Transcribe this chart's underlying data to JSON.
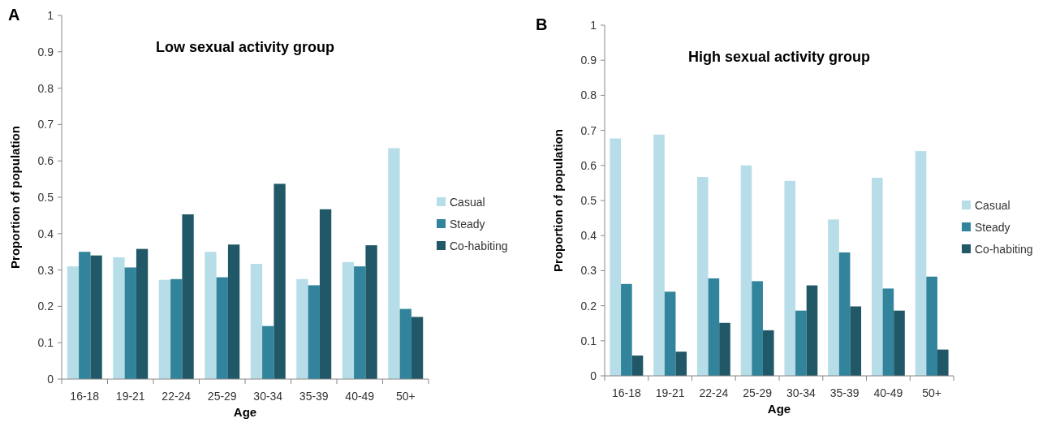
{
  "chart_data": [
    {
      "type": "bar",
      "title": "Low sexual activity group",
      "xlabel": "Age",
      "ylabel": "Proportion of population",
      "annotations": [
        "A"
      ],
      "categories": [
        "16-18",
        "19-21",
        "22-24",
        "25-29",
        "30-34",
        "35-39",
        "40-49",
        "50+"
      ],
      "series": [
        {
          "name": "Casual",
          "color": "#b7dde8",
          "values": [
            0.31,
            0.335,
            0.273,
            0.35,
            0.317,
            0.275,
            0.322,
            0.635
          ]
        },
        {
          "name": "Steady",
          "color": "#31849b",
          "values": [
            0.35,
            0.307,
            0.275,
            0.28,
            0.146,
            0.258,
            0.31,
            0.193
          ]
        },
        {
          "name": "Co-habiting",
          "color": "#215868",
          "values": [
            0.34,
            0.358,
            0.453,
            0.37,
            0.537,
            0.467,
            0.368,
            0.171
          ]
        }
      ],
      "ylim": [
        0,
        1
      ],
      "yticks": [
        0,
        0.1,
        0.2,
        0.3,
        0.4,
        0.5,
        0.6,
        0.7,
        0.8,
        0.9,
        1
      ],
      "legend": "right"
    },
    {
      "type": "bar",
      "title": "High sexual activity group",
      "xlabel": "Age",
      "ylabel": "Proportion of population",
      "annotations": [
        "B"
      ],
      "categories": [
        "16-18",
        "19-21",
        "22-24",
        "25-29",
        "30-34",
        "35-39",
        "40-49",
        "50+"
      ],
      "series": [
        {
          "name": "Casual",
          "color": "#b7dde8",
          "values": [
            0.677,
            0.688,
            0.567,
            0.6,
            0.556,
            0.446,
            0.565,
            0.641
          ]
        },
        {
          "name": "Steady",
          "color": "#31849b",
          "values": [
            0.262,
            0.24,
            0.278,
            0.27,
            0.186,
            0.352,
            0.249,
            0.283
          ]
        },
        {
          "name": "Co-habiting",
          "color": "#215868",
          "values": [
            0.058,
            0.069,
            0.151,
            0.13,
            0.258,
            0.198,
            0.186,
            0.075
          ]
        }
      ],
      "ylim": [
        0,
        1
      ],
      "yticks": [
        0,
        0.1,
        0.2,
        0.3,
        0.4,
        0.5,
        0.6,
        0.7,
        0.8,
        0.9,
        1
      ],
      "legend": "right"
    }
  ]
}
